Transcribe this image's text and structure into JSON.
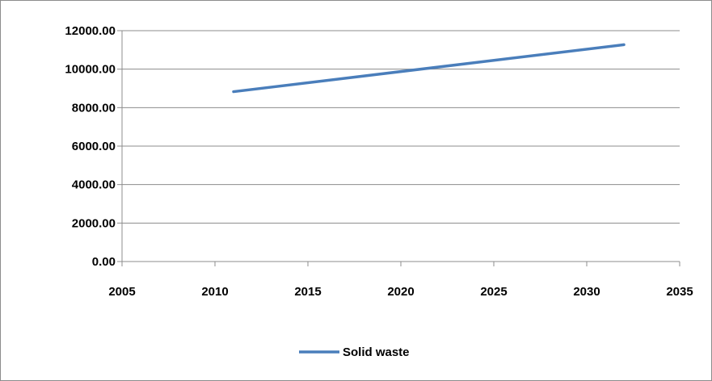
{
  "chart_data": {
    "type": "line",
    "title": "",
    "xlabel": "",
    "ylabel": "",
    "xlim": [
      2005,
      2035
    ],
    "ylim": [
      0,
      12000
    ],
    "x_ticks": [
      2005,
      2010,
      2015,
      2020,
      2025,
      2030,
      2035
    ],
    "x_tick_labels": [
      "2005",
      "2010",
      "2015",
      "2020",
      "2025",
      "2030",
      "2035"
    ],
    "y_ticks": [
      0,
      2000,
      4000,
      6000,
      8000,
      10000,
      12000
    ],
    "y_tick_labels": [
      "0.00",
      "2000.00",
      "4000.00",
      "6000.00",
      "8000.00",
      "10000.00",
      "12000.00"
    ],
    "grid": "horizontal",
    "legend_position": "bottom",
    "series": [
      {
        "name": "Solid waste",
        "color": "#4a7ebb",
        "x": [
          2011,
          2032
        ],
        "values": [
          8830,
          11270
        ]
      }
    ]
  }
}
